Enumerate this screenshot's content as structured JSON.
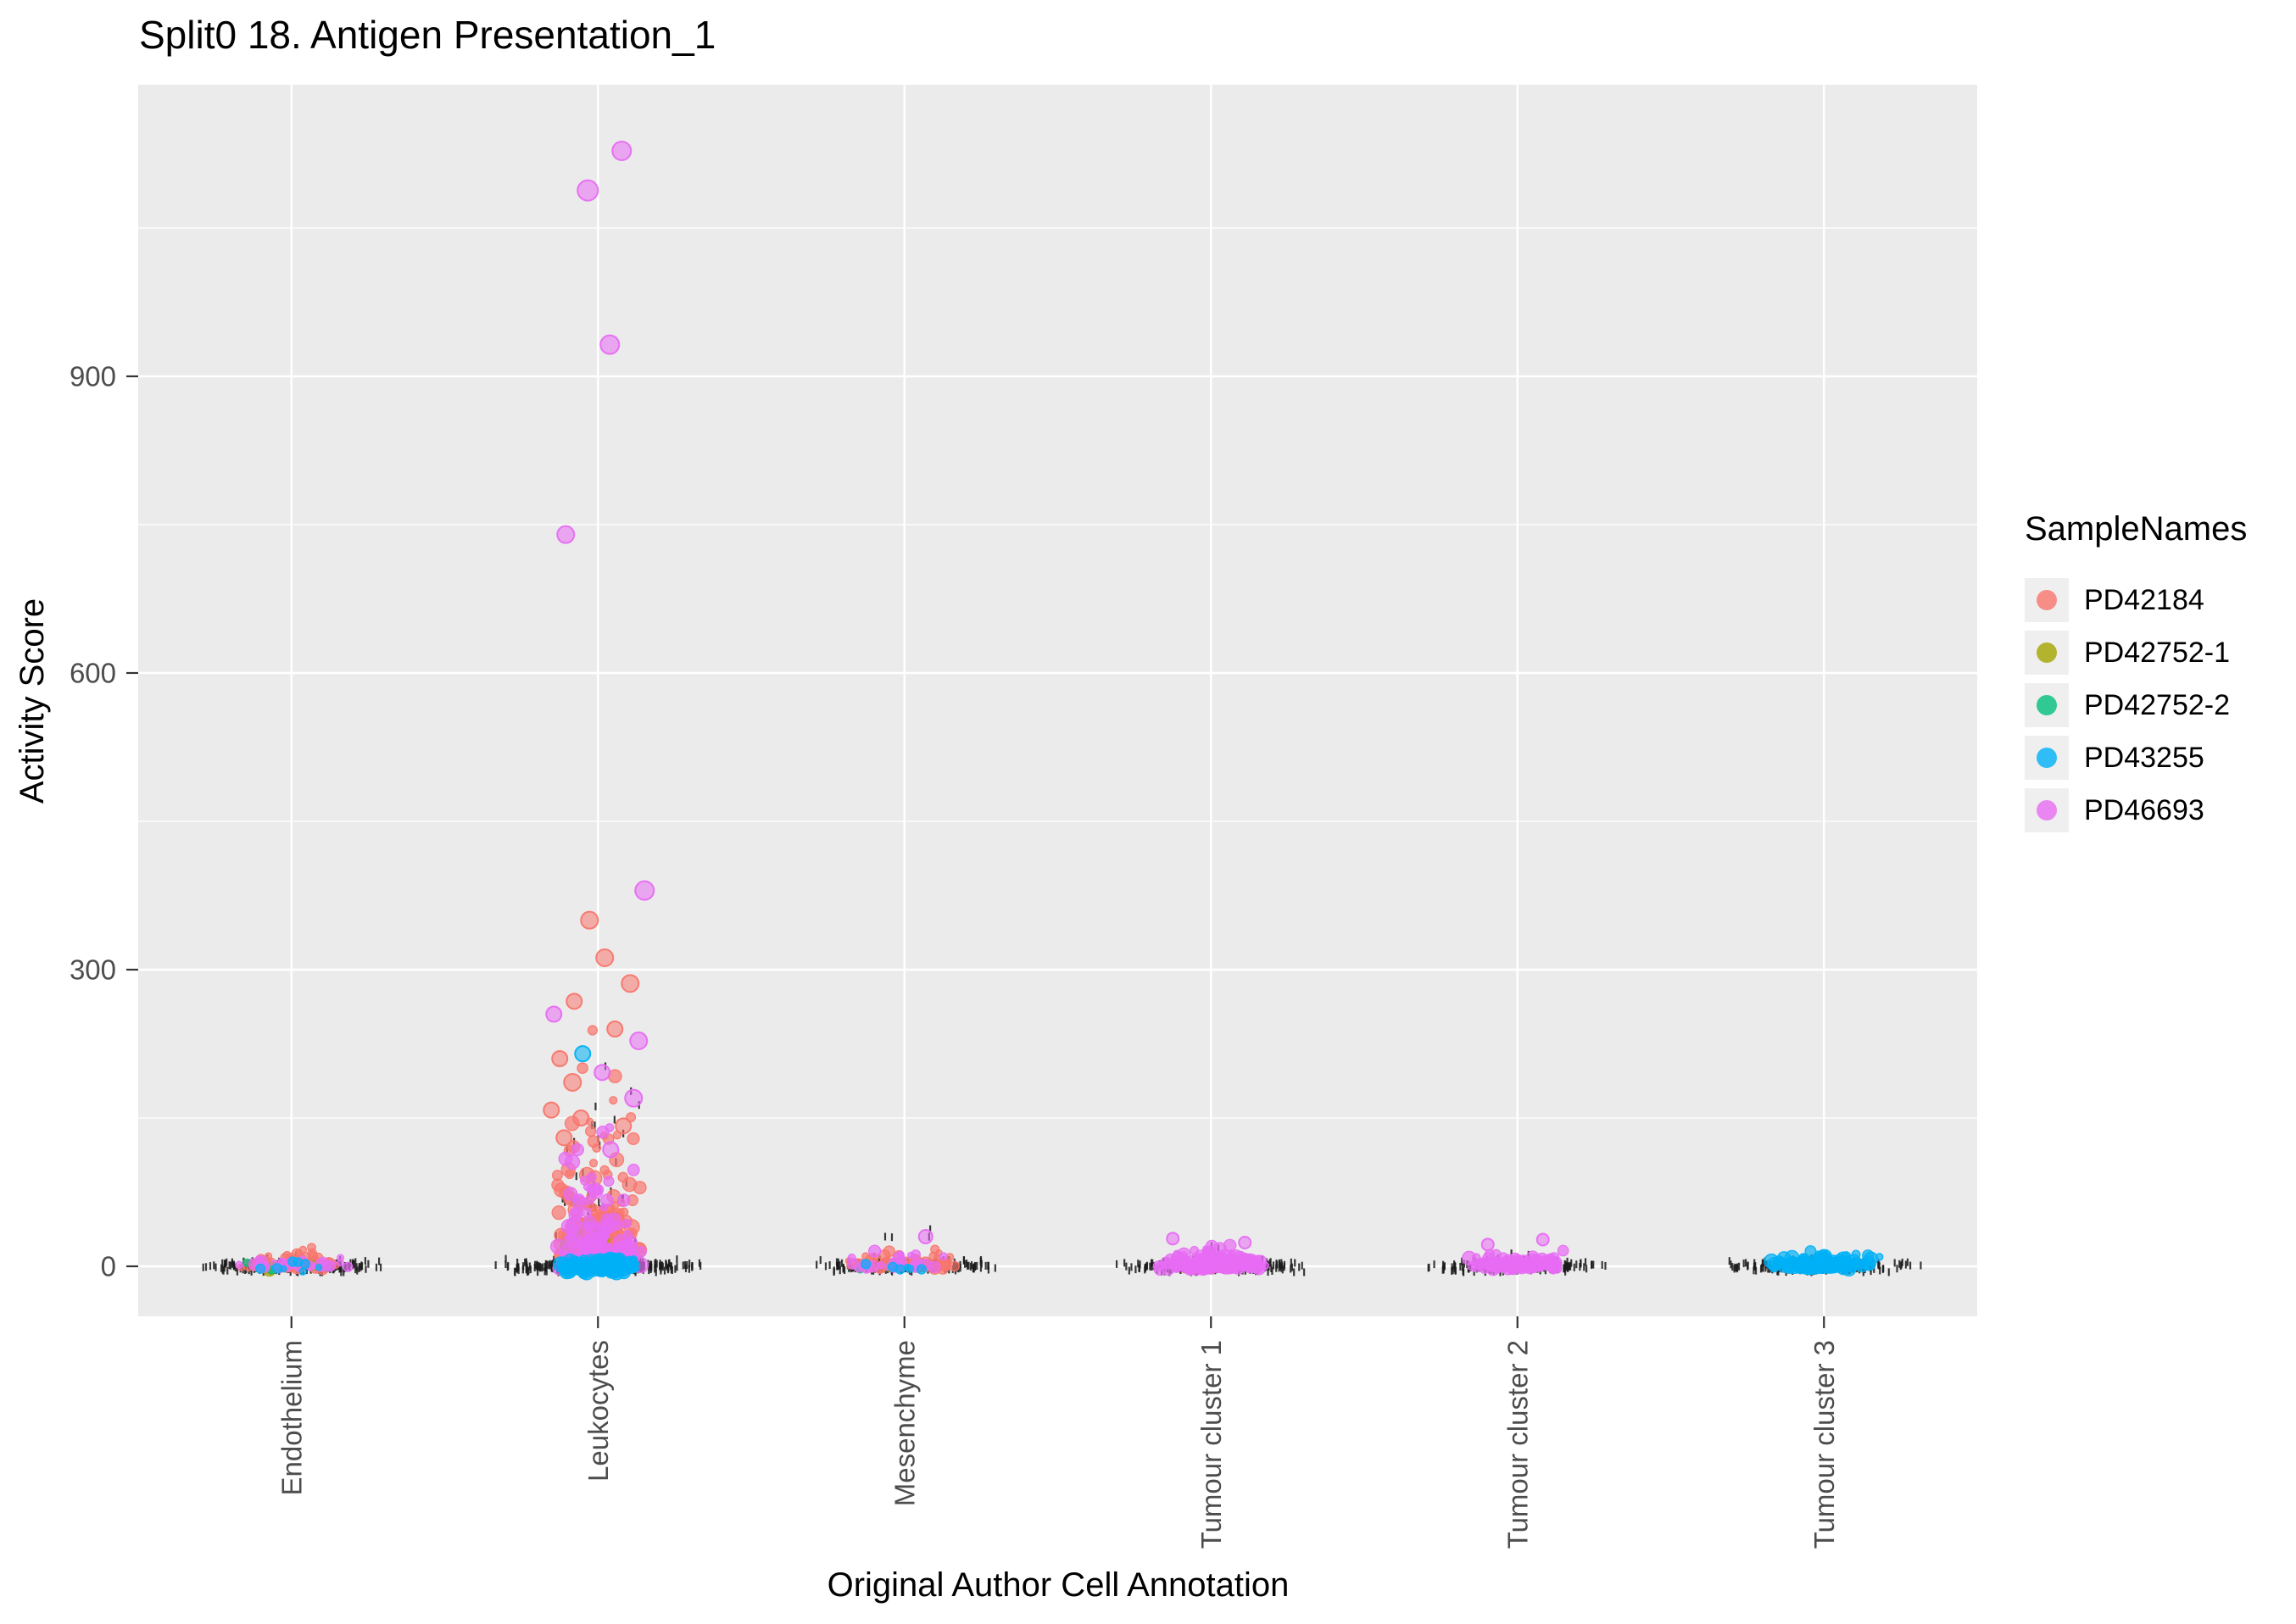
{
  "chart_data": {
    "type": "scatter",
    "title": "Split0 18. Antigen Presentation_1",
    "xlabel": "Original Author Cell Annotation",
    "ylabel": "Activity Score",
    "categories": [
      "Endothelium",
      "Leukocytes",
      "Mesenchyme",
      "Tumour cluster 1",
      "Tumour cluster 2",
      "Tumour cluster 3"
    ],
    "yticks": [
      0,
      300,
      600,
      900
    ],
    "yminor": [
      150,
      450,
      750,
      1050
    ],
    "ylim": [
      -50,
      1195
    ],
    "grid": true,
    "legend_position": "right",
    "legend": {
      "title": "SampleNames",
      "entries": [
        {
          "label": "PD42184",
          "color": "#F8766D"
        },
        {
          "label": "PD42752-1",
          "color": "#A3A500"
        },
        {
          "label": "PD42752-2",
          "color": "#00BF7D"
        },
        {
          "label": "PD43255",
          "color": "#00B0F6"
        },
        {
          "label": "PD46693",
          "color": "#E76BF3"
        }
      ]
    },
    "colors": {
      "panel_bg": "#EBEBEB",
      "grid": "#FFFFFF",
      "tick_text": "#4D4D4D",
      "tick_mark": "#333333",
      "rug": "#1A1A1A",
      "legend_key_bg": "#EFEFEF"
    },
    "draw_order": [
      "PD42184",
      "PD42752-1",
      "PD42752-2",
      "PD46693",
      "PD43255"
    ],
    "clusters": [
      {
        "cat": 0,
        "sample": "PD42184",
        "n": 70,
        "dist": "exp",
        "scale": 5,
        "max": 26,
        "jitter": 70,
        "rmin": 3.5,
        "rmax": 7
      },
      {
        "cat": 0,
        "sample": "PD46693",
        "n": 28,
        "dist": "exp",
        "scale": 4,
        "max": 20,
        "jitter": 76,
        "rmin": 3.5,
        "rmax": 7
      },
      {
        "cat": 0,
        "sample": "PD42752-1",
        "n": 4,
        "dist": "zero",
        "sd": 2.5,
        "jitter": 62,
        "rmin": 4.5,
        "rmax": 7.5
      },
      {
        "cat": 0,
        "sample": "PD42752-2",
        "n": 4,
        "dist": "zero",
        "sd": 2.5,
        "jitter": 60,
        "rmin": 3.5,
        "rmax": 6
      },
      {
        "cat": 0,
        "sample": "PD43255",
        "n": 8,
        "dist": "zero",
        "sd": 3,
        "jitter": 66,
        "rmin": 3.5,
        "rmax": 6
      },
      {
        "cat": 1,
        "sample": "PD42184",
        "n": 210,
        "dist": "exp",
        "scale": 40,
        "max": 320,
        "jitter": 58,
        "rmin": 4,
        "rmax": 9
      },
      {
        "cat": 1,
        "sample": "PD46693",
        "n": 140,
        "dist": "exp",
        "scale": 30,
        "max": 240,
        "jitter": 55,
        "rmin": 4,
        "rmax": 9
      },
      {
        "cat": 1,
        "sample": "PD42752-1",
        "n": 10,
        "dist": "exp",
        "scale": 22,
        "max": 80,
        "jitter": 42,
        "rmin": 4,
        "rmax": 7.5
      },
      {
        "cat": 1,
        "sample": "PD42752-2",
        "n": 10,
        "dist": "exp",
        "scale": 18,
        "max": 58,
        "jitter": 42,
        "rmin": 4,
        "rmax": 7.5
      },
      {
        "cat": 1,
        "sample": "PD43255",
        "n": 170,
        "dist": "zero",
        "sd": 3.2,
        "jitter": 48,
        "rmin": 4.5,
        "rmax": 9
      },
      {
        "cat": 2,
        "sample": "PD42184",
        "n": 72,
        "dist": "exp",
        "scale": 5,
        "max": 24,
        "jitter": 72,
        "rmin": 3.5,
        "rmax": 7
      },
      {
        "cat": 2,
        "sample": "PD46693",
        "n": 30,
        "dist": "exp",
        "scale": 5,
        "max": 26,
        "jitter": 72,
        "rmin": 3.5,
        "rmax": 7
      },
      {
        "cat": 2,
        "sample": "PD43255",
        "n": 6,
        "dist": "zero",
        "sd": 3,
        "jitter": 60,
        "rmin": 3.5,
        "rmax": 6
      },
      {
        "cat": 2,
        "sample": "PD42752-1",
        "n": 3,
        "dist": "zero",
        "sd": 2,
        "jitter": 52,
        "rmin": 3.5,
        "rmax": 5.5
      },
      {
        "cat": 2,
        "sample": "PD42752-2",
        "n": 4,
        "dist": "zero",
        "sd": 2,
        "jitter": 56,
        "rmin": 3.5,
        "rmax": 5.5
      },
      {
        "cat": 3,
        "sample": "PD46693",
        "n": 170,
        "dist": "exp",
        "scale": 5,
        "max": 26,
        "jitter": 66,
        "rmin": 4,
        "rmax": 8.5
      },
      {
        "cat": 3,
        "sample": "PD42184",
        "n": 8,
        "dist": "zero",
        "sd": 3,
        "jitter": 55,
        "rmin": 3.5,
        "rmax": 6
      },
      {
        "cat": 4,
        "sample": "PD46693",
        "n": 115,
        "dist": "exp",
        "scale": 4,
        "max": 22,
        "jitter": 62,
        "rmin": 4,
        "rmax": 8
      },
      {
        "cat": 4,
        "sample": "PD42184",
        "n": 6,
        "dist": "zero",
        "sd": 2.5,
        "jitter": 50,
        "rmin": 3.5,
        "rmax": 6
      },
      {
        "cat": 5,
        "sample": "PD43255",
        "n": 135,
        "dist": "exp",
        "scale": 4,
        "max": 18,
        "jitter": 66,
        "rmin": 4,
        "rmax": 8.5
      },
      {
        "cat": 5,
        "sample": "PD46693",
        "n": 5,
        "dist": "zero",
        "sd": 2,
        "jitter": 56,
        "rmin": 3.5,
        "rmax": 6
      }
    ],
    "outliers": [
      {
        "cat": 1,
        "sample": "PD46693",
        "y": 1128,
        "dx": 28,
        "r": 11
      },
      {
        "cat": 1,
        "sample": "PD46693",
        "y": 1088,
        "dx": -12,
        "r": 12
      },
      {
        "cat": 1,
        "sample": "PD46693",
        "y": 932,
        "dx": 14,
        "r": 11
      },
      {
        "cat": 1,
        "sample": "PD46693",
        "y": 740,
        "dx": -38,
        "r": 10
      },
      {
        "cat": 1,
        "sample": "PD46693",
        "y": 380,
        "dx": 55,
        "r": 11
      },
      {
        "cat": 1,
        "sample": "PD42184",
        "y": 350,
        "dx": -10,
        "r": 10
      },
      {
        "cat": 1,
        "sample": "PD42184",
        "y": 312,
        "dx": 8,
        "r": 10
      },
      {
        "cat": 1,
        "sample": "PD42184",
        "y": 286,
        "dx": 38,
        "r": 10
      },
      {
        "cat": 1,
        "sample": "PD42184",
        "y": 268,
        "dx": -28,
        "r": 9
      },
      {
        "cat": 1,
        "sample": "PD46693",
        "y": 255,
        "dx": -52,
        "r": 9
      },
      {
        "cat": 1,
        "sample": "PD42184",
        "y": 240,
        "dx": 20,
        "r": 9
      },
      {
        "cat": 1,
        "sample": "PD46693",
        "y": 228,
        "dx": 48,
        "r": 10
      },
      {
        "cat": 1,
        "sample": "PD43255",
        "y": 215,
        "dx": -18,
        "r": 9
      },
      {
        "cat": 1,
        "sample": "PD42184",
        "y": 210,
        "dx": -45,
        "r": 9
      },
      {
        "cat": 1,
        "sample": "PD46693",
        "y": 196,
        "dx": 5,
        "r": 9
      },
      {
        "cat": 1,
        "sample": "PD42184",
        "y": 186,
        "dx": -30,
        "r": 10
      },
      {
        "cat": 1,
        "sample": "PD46693",
        "y": 170,
        "dx": 42,
        "r": 10
      },
      {
        "cat": 1,
        "sample": "PD42184",
        "y": 158,
        "dx": -55,
        "r": 9
      },
      {
        "cat": 1,
        "sample": "PD42184",
        "y": 150,
        "dx": -20,
        "r": 9
      },
      {
        "cat": 1,
        "sample": "PD42184",
        "y": 142,
        "dx": 30,
        "r": 9
      },
      {
        "cat": 1,
        "sample": "PD42184",
        "y": 130,
        "dx": -40,
        "r": 9
      },
      {
        "cat": 1,
        "sample": "PD46693",
        "y": 118,
        "dx": 15,
        "r": 9
      },
      {
        "cat": 2,
        "sample": "PD46693",
        "y": 30,
        "dx": 25,
        "r": 8
      },
      {
        "cat": 3,
        "sample": "PD46693",
        "y": 28,
        "dx": -45,
        "r": 7
      },
      {
        "cat": 3,
        "sample": "PD46693",
        "y": 24,
        "dx": 40,
        "r": 7
      },
      {
        "cat": 4,
        "sample": "PD46693",
        "y": 27,
        "dx": 30,
        "r": 7
      },
      {
        "cat": 4,
        "sample": "PD46693",
        "y": 22,
        "dx": -35,
        "r": 7
      }
    ],
    "rug_bands": [
      {
        "cat": 0,
        "n": 230,
        "jitter": 118,
        "sd": 2.8
      },
      {
        "cat": 1,
        "n": 330,
        "jitter": 126,
        "sd": 2.8
      },
      {
        "cat": 2,
        "n": 240,
        "jitter": 120,
        "sd": 2.8
      },
      {
        "cat": 3,
        "n": 220,
        "jitter": 116,
        "sd": 2.8
      },
      {
        "cat": 4,
        "n": 200,
        "jitter": 112,
        "sd": 2.8
      },
      {
        "cat": 5,
        "n": 220,
        "jitter": 118,
        "sd": 2.8
      }
    ],
    "rug_tall": [
      {
        "cat": 0,
        "n": 10,
        "scale": 8,
        "max": 26,
        "jitter": 62
      },
      {
        "cat": 1,
        "n": 85,
        "scale": 68,
        "max": 320,
        "jitter": 56
      },
      {
        "cat": 2,
        "n": 12,
        "scale": 12,
        "max": 40,
        "jitter": 62
      },
      {
        "cat": 3,
        "n": 10,
        "scale": 10,
        "max": 32,
        "jitter": 60
      },
      {
        "cat": 4,
        "n": 8,
        "scale": 8,
        "max": 26,
        "jitter": 52
      },
      {
        "cat": 5,
        "n": 8,
        "scale": 6,
        "max": 18,
        "jitter": 56
      }
    ]
  }
}
